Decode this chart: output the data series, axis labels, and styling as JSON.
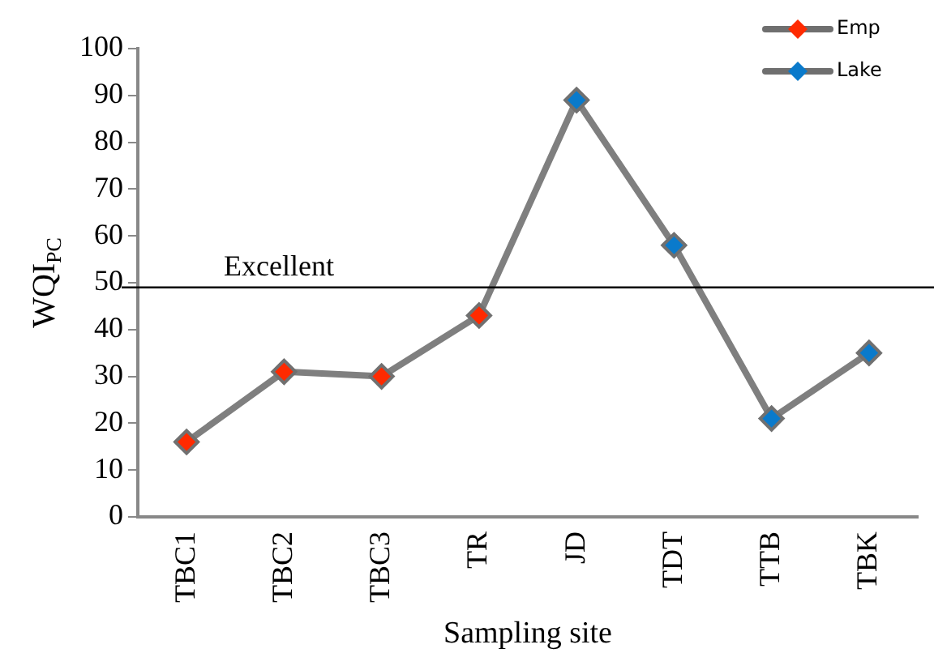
{
  "chart_data": {
    "type": "line",
    "xlabel": "Sampling site",
    "ylabel": "WQI$_{PC}$",
    "categories": [
      "TBC1",
      "TBC2",
      "TBC3",
      "TR",
      "JD",
      "TDT",
      "TTB",
      "TBK"
    ],
    "series": [
      {
        "color": "#7f7f7f",
        "marker": "none",
        "values": [
          16,
          31,
          30,
          43,
          89,
          58,
          21,
          35
        ]
      },
      {
        "type": "scatter",
        "name": "Emp",
        "color": "#ff2a00",
        "marker": "diamond",
        "values": [
          16,
          31,
          30,
          43,
          null,
          null,
          null,
          null
        ]
      },
      {
        "type": "scatter",
        "name": "Lake",
        "color": "#0a7acb",
        "marker": "diamond",
        "values": [
          null,
          null,
          null,
          null,
          89,
          58,
          21,
          35
        ]
      }
    ],
    "ylim": [
      0,
      100
    ],
    "yticks": [
      0,
      10,
      20,
      30,
      40,
      50,
      60,
      70,
      80,
      90,
      100
    ],
    "grid": false,
    "legend": "top right",
    "ref_lines": [
      {
        "axis": "y",
        "value": 49,
        "label": "Excellent",
        "color": "#000000"
      }
    ]
  }
}
